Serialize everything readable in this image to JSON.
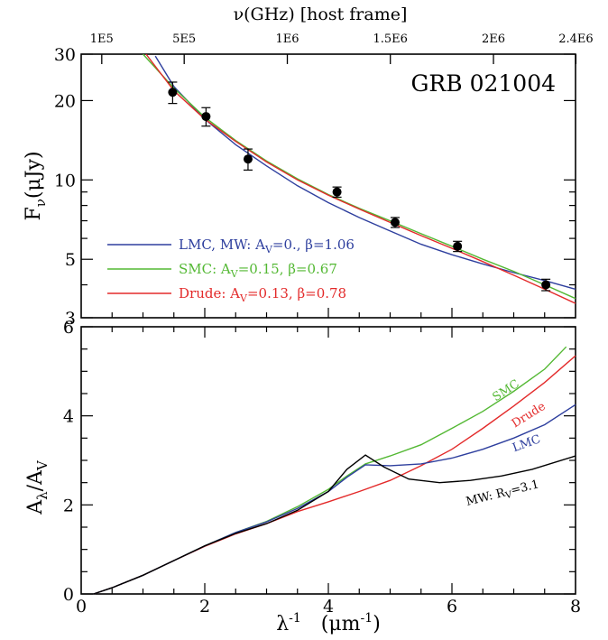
{
  "chart_data": [
    {
      "type": "scatter",
      "title": "GRB 021004",
      "top_axis": {
        "label": "ν(GHz) [host frame]",
        "ticks": [
          {
            "label": "1E5",
            "x": 0.333
          },
          {
            "label": "5E5",
            "x": 1.667
          },
          {
            "label": "1E6",
            "x": 3.336
          },
          {
            "label": "1.5E6",
            "x": 5.003
          },
          {
            "label": "2E6",
            "x": 6.672
          },
          {
            "label": "2.4E6",
            "x": 8.006
          }
        ]
      },
      "ylabel": "F_ν(μJy)",
      "ylabel_main": "F",
      "ylabel_sub": "ν",
      "ylabel_tail": "(μJy)",
      "ylim": [
        3,
        30
      ],
      "yscale": "log",
      "yticks": [
        3,
        5,
        10,
        20,
        30
      ],
      "xlim": [
        0,
        8
      ],
      "observations": {
        "x": [
          1.48,
          2.02,
          2.7,
          4.14,
          5.08,
          6.09,
          7.52
        ],
        "y": [
          21.5,
          17.4,
          12.0,
          9.0,
          6.9,
          5.6,
          4.0
        ],
        "yerr": [
          2.0,
          1.4,
          1.1,
          0.4,
          0.3,
          0.25,
          0.2
        ]
      },
      "series": [
        {
          "label_text": "LMC, MW: A",
          "label_sub": "V",
          "label_tail": "=0., β=1.06",
          "color": "#2e3f9e",
          "x": [
            1.2,
            1.5,
            2.0,
            2.5,
            3.0,
            3.5,
            4.0,
            4.5,
            5.0,
            5.5,
            6.0,
            6.5,
            7.0,
            7.5,
            8.0
          ],
          "y": [
            29.5,
            22.6,
            17.0,
            13.6,
            11.3,
            9.5,
            8.2,
            7.2,
            6.4,
            5.7,
            5.2,
            4.8,
            4.45,
            4.15,
            3.85
          ]
        },
        {
          "label_text": "SMC: A",
          "label_sub": "V",
          "label_tail": "=0.15, β=0.67",
          "color": "#53b833",
          "x": [
            1.0,
            1.5,
            2.0,
            2.5,
            3.0,
            3.5,
            4.0,
            4.5,
            5.0,
            5.5,
            6.0,
            6.5,
            7.0,
            7.5,
            8.0
          ],
          "y": [
            30.0,
            22.3,
            17.3,
            14.1,
            11.8,
            10.1,
            8.8,
            7.8,
            7.0,
            6.25,
            5.6,
            5.0,
            4.5,
            4.0,
            3.55
          ]
        },
        {
          "label_text": "Drude: A",
          "label_sub": "V",
          "label_tail": "=0.13, β=0.78",
          "color": "#e32a2a",
          "x": [
            1.05,
            1.5,
            2.0,
            2.5,
            3.0,
            3.5,
            4.0,
            4.5,
            5.0,
            5.5,
            6.0,
            6.5,
            7.0,
            7.5,
            8.0
          ],
          "y": [
            30.0,
            21.8,
            17.0,
            14.0,
            11.7,
            10.0,
            8.75,
            7.75,
            6.9,
            6.15,
            5.5,
            4.9,
            4.35,
            3.85,
            3.4
          ]
        }
      ]
    },
    {
      "type": "line",
      "ylabel": "A_λ/A_V",
      "ylabel_main": "A",
      "ylabel_sub1": "λ",
      "ylabel_mid": "/A",
      "ylabel_sub2": "V",
      "xlabel": "λ⁻¹  (μm⁻¹)",
      "xlabel_a": "λ",
      "xlabel_a_sup": "-1",
      "xlabel_b": "(μm",
      "xlabel_b_sup": "-1",
      "xlabel_c": ")",
      "xlim": [
        0,
        8
      ],
      "xticks": [
        0,
        2,
        4,
        6,
        8
      ],
      "ylim": [
        0,
        6
      ],
      "yticks": [
        0,
        2,
        4,
        6
      ],
      "series": [
        {
          "name": "SMC",
          "label_text": "SMC",
          "color": "#53b833",
          "x": [
            0.2,
            0.5,
            1.0,
            1.5,
            2.0,
            2.5,
            3.0,
            3.5,
            4.0,
            4.3,
            4.6,
            5.0,
            5.5,
            6.0,
            6.5,
            7.0,
            7.5,
            7.85
          ],
          "y": [
            0.0,
            0.14,
            0.42,
            0.75,
            1.08,
            1.38,
            1.63,
            1.96,
            2.35,
            2.65,
            2.92,
            3.1,
            3.35,
            3.72,
            4.1,
            4.55,
            5.05,
            5.55
          ]
        },
        {
          "name": "Drude",
          "label_text": "Drude",
          "color": "#e32a2a",
          "x": [
            0.2,
            0.5,
            1.0,
            1.5,
            2.0,
            2.5,
            3.0,
            3.5,
            4.0,
            4.5,
            5.0,
            5.5,
            6.0,
            6.5,
            7.0,
            7.5,
            8.0
          ],
          "y": [
            0.0,
            0.14,
            0.42,
            0.75,
            1.07,
            1.35,
            1.58,
            1.85,
            2.07,
            2.3,
            2.55,
            2.88,
            3.25,
            3.72,
            4.22,
            4.75,
            5.35
          ]
        },
        {
          "name": "LMC",
          "label_text": "LMC",
          "color": "#2e3f9e",
          "x": [
            0.2,
            0.5,
            1.0,
            1.5,
            2.0,
            2.5,
            3.0,
            3.5,
            4.0,
            4.3,
            4.6,
            5.0,
            5.5,
            6.0,
            6.5,
            7.0,
            7.5,
            8.0
          ],
          "y": [
            0.0,
            0.14,
            0.42,
            0.75,
            1.08,
            1.38,
            1.62,
            1.92,
            2.3,
            2.62,
            2.9,
            2.88,
            2.92,
            3.05,
            3.25,
            3.5,
            3.8,
            4.25
          ]
        },
        {
          "name": "MW",
          "label_text": "MW: R",
          "label_sub": "V",
          "label_tail": "=3.1",
          "color": "#000000",
          "x": [
            0.2,
            0.5,
            1.0,
            1.5,
            2.0,
            2.5,
            3.0,
            3.5,
            4.0,
            4.3,
            4.6,
            4.9,
            5.3,
            5.8,
            6.3,
            6.8,
            7.3,
            8.0
          ],
          "y": [
            0.0,
            0.14,
            0.42,
            0.75,
            1.08,
            1.36,
            1.58,
            1.88,
            2.3,
            2.8,
            3.12,
            2.85,
            2.58,
            2.5,
            2.55,
            2.65,
            2.8,
            3.1
          ]
        }
      ]
    }
  ]
}
